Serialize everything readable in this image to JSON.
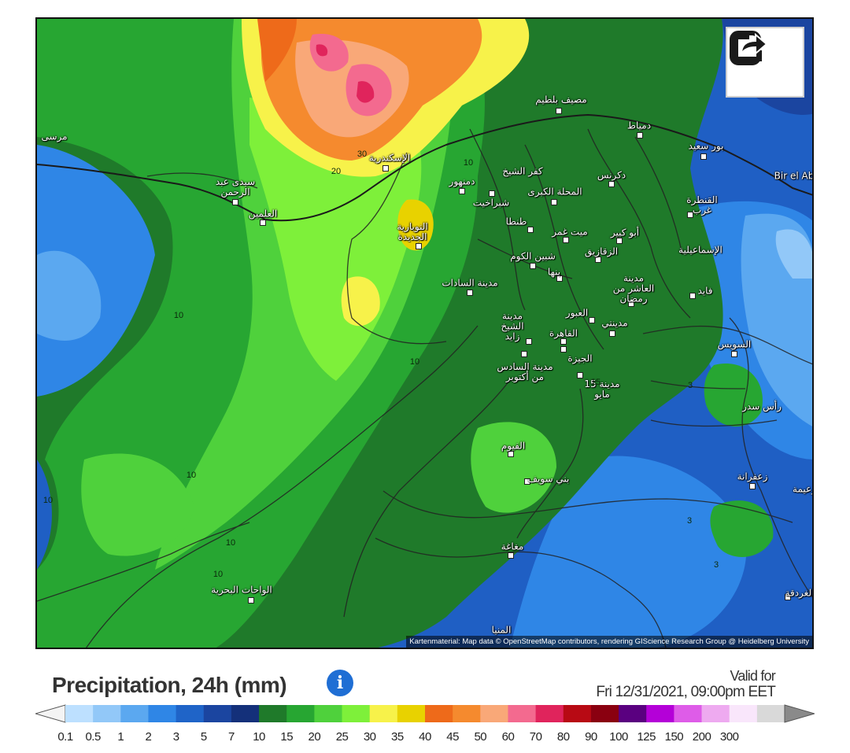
{
  "legend": {
    "title": "Precipitation, 24h",
    "unit": "(mm)",
    "valid_for_label": "Valid for",
    "valid_time": "Fri 12/31/2021, 09:00pm EET",
    "ticks": [
      "0.1",
      "0.5",
      "1",
      "2",
      "3",
      "5",
      "7",
      "10",
      "15",
      "20",
      "25",
      "30",
      "35",
      "40",
      "45",
      "50",
      "60",
      "70",
      "80",
      "90",
      "100",
      "125",
      "150",
      "200",
      "300"
    ],
    "colors": [
      "#bde0ff",
      "#92c8f8",
      "#5ba8f0",
      "#2f86e6",
      "#1f64c8",
      "#1b45a0",
      "#14307a",
      "#1f7a2a",
      "#27a632",
      "#4fd13c",
      "#7ef03a",
      "#f7f24a",
      "#e8d200",
      "#ee6a1a",
      "#f58a2e",
      "#f9a878",
      "#f36a8f",
      "#e0245c",
      "#b80a14",
      "#8a0010",
      "#5a0080",
      "#b400d8",
      "#de5ce8",
      "#eeaaf0",
      "#f9e6fb",
      "#d9d9d9"
    ],
    "under_color": "#f4f4f4",
    "over_color": "#8a8a8a"
  },
  "map": {
    "attribution": "Kartenmaterial: Map data © OpenStreetMap contributors, rendering GIScience Research Group @ Heidelberg University",
    "share_icon": "share-icon",
    "cities": [
      {
        "name": "مصيف بلطيم",
        "icon": "city-marker"
      },
      {
        "name": "دمياط",
        "icon": "city-marker"
      },
      {
        "name": "بور سعيد",
        "icon": "city-marker"
      },
      {
        "name": "مرسى",
        "icon": "city-marker"
      },
      {
        "name": "الإسكندرية",
        "icon": "city-marker"
      },
      {
        "name": "كفر الشيخ",
        "icon": "city-marker"
      },
      {
        "name": "دمنهور",
        "icon": "city-marker"
      },
      {
        "name": "شبراخيت",
        "icon": "city-marker"
      },
      {
        "name": "المحلة الكبرى",
        "icon": "city-marker"
      },
      {
        "name": "دكرنس",
        "icon": "city-marker"
      },
      {
        "name": "سيدى عبد الرحمن",
        "icon": "city-marker"
      },
      {
        "name": "العلمين",
        "icon": "city-marker"
      },
      {
        "name": "طنطا",
        "icon": "city-marker"
      },
      {
        "name": "ميت غمر",
        "icon": "city-marker"
      },
      {
        "name": "أبو كبير",
        "icon": "city-marker"
      },
      {
        "name": "القنطرة غرب",
        "icon": "city-marker"
      },
      {
        "name": "النوبارية الجديدة",
        "icon": "city-marker"
      },
      {
        "name": "شبين الكوم",
        "icon": "city-marker"
      },
      {
        "name": "الزقازيق",
        "icon": "city-marker"
      },
      {
        "name": "الإسماعيلية",
        "icon": "city-marker"
      },
      {
        "name": "بنها",
        "icon": "city-marker"
      },
      {
        "name": "مدينة السادات",
        "icon": "city-marker"
      },
      {
        "name": "مدينة العاشر من رمضان",
        "icon": "city-marker"
      },
      {
        "name": "فايد",
        "icon": "city-marker"
      },
      {
        "name": "العبور",
        "icon": "city-marker"
      },
      {
        "name": "مدينة الشيخ زايد",
        "icon": "city-marker"
      },
      {
        "name": "مدينتي",
        "icon": "city-marker"
      },
      {
        "name": "القاهرة",
        "icon": "city-marker"
      },
      {
        "name": "السويس",
        "icon": "city-marker"
      },
      {
        "name": "الجيزة",
        "icon": "city-marker"
      },
      {
        "name": "مدينة السادس من أكتوبر",
        "icon": "city-marker"
      },
      {
        "name": "مدينة 15 مايو",
        "icon": "city-marker"
      },
      {
        "name": "رأس سدر",
        "icon": "city-marker"
      },
      {
        "name": "الفيوم",
        "icon": "city-marker"
      },
      {
        "name": "بني سويف",
        "icon": "city-marker"
      },
      {
        "name": "زعفرانة",
        "icon": "city-marker"
      },
      {
        "name": "زعيمة",
        "icon": "city-marker"
      },
      {
        "name": "مغاغة",
        "icon": "city-marker"
      },
      {
        "name": "الواحات البحرية",
        "icon": "city-marker"
      },
      {
        "name": "الغردقة",
        "icon": "city-marker"
      },
      {
        "name": "المنيا",
        "icon": "city-marker"
      },
      {
        "name": "Bir el Ab",
        "icon": "city-marker"
      }
    ],
    "contour_labels": [
      "30",
      "20",
      "10",
      "10",
      "10",
      "10",
      "10",
      "10",
      "10",
      "15",
      "3",
      "3",
      "3"
    ]
  }
}
